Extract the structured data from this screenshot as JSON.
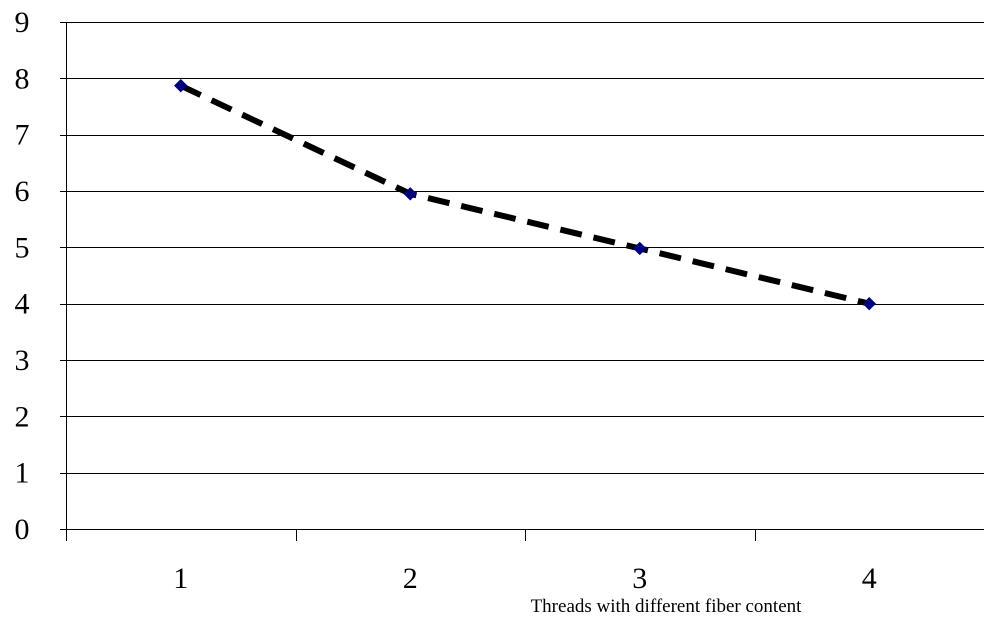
{
  "chart_data": {
    "type": "line",
    "title": "",
    "xlabel": "Threads with different fiber content",
    "ylabel": "",
    "categories": [
      "1",
      "2",
      "3",
      "4"
    ],
    "series": [
      {
        "values": [
          7.87,
          5.95,
          4.98,
          4.0
        ]
      }
    ],
    "ylim": [
      0,
      9
    ],
    "yticks": [
      "0",
      "1",
      "2",
      "3",
      "4",
      "5",
      "6",
      "7",
      "8",
      "9"
    ],
    "grid": "horizontal",
    "line_style": "dashed",
    "colors": {
      "line": "#000000",
      "marker": "#00007f",
      "grid": "#000000"
    }
  }
}
